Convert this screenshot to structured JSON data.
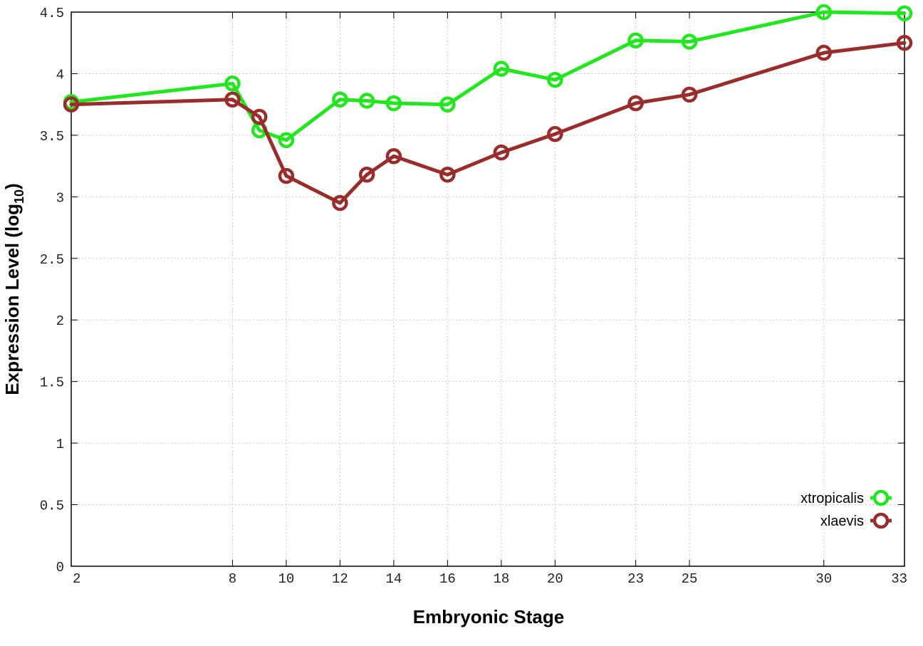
{
  "chart_data": {
    "type": "line",
    "xlabel": "Embryonic Stage",
    "ylabel_main": "Expression Level (log",
    "ylabel_sub": "10",
    "ylabel_close": ")",
    "xlim": [
      2,
      33
    ],
    "ylim": [
      0,
      4.5
    ],
    "x_ticks": [
      2,
      8,
      10,
      12,
      14,
      16,
      18,
      20,
      23,
      25,
      30,
      33
    ],
    "y_ticks": [
      {
        "value": 0,
        "label": "0"
      },
      {
        "value": 0.5,
        "label": "0.5"
      },
      {
        "value": 1,
        "label": "1"
      },
      {
        "value": 1.5,
        "label": "1.5"
      },
      {
        "value": 2,
        "label": "2"
      },
      {
        "value": 2.5,
        "label": "2.5"
      },
      {
        "value": 3,
        "label": "3"
      },
      {
        "value": 3.5,
        "label": "3.5"
      },
      {
        "value": 4,
        "label": "4"
      },
      {
        "value": 4.5,
        "label": "4.5"
      }
    ],
    "grid": true,
    "legend_position": "bottom-right",
    "series": [
      {
        "name": "xtropicalis",
        "color": "#22e61e",
        "x": [
          2,
          8,
          9,
          10,
          12,
          13,
          14,
          16,
          18,
          20,
          23,
          25,
          30,
          33
        ],
        "values": [
          3.77,
          3.92,
          3.54,
          3.46,
          3.79,
          3.78,
          3.76,
          3.75,
          4.04,
          3.95,
          4.27,
          4.26,
          4.5,
          4.49
        ]
      },
      {
        "name": "xlaevis",
        "color": "#9b2c2c",
        "x": [
          2,
          8,
          9,
          10,
          12,
          13,
          14,
          16,
          18,
          20,
          23,
          25,
          30,
          33
        ],
        "values": [
          3.75,
          3.79,
          3.65,
          3.17,
          2.95,
          3.18,
          3.33,
          3.18,
          3.36,
          3.51,
          3.76,
          3.83,
          4.17,
          4.25
        ]
      }
    ]
  }
}
